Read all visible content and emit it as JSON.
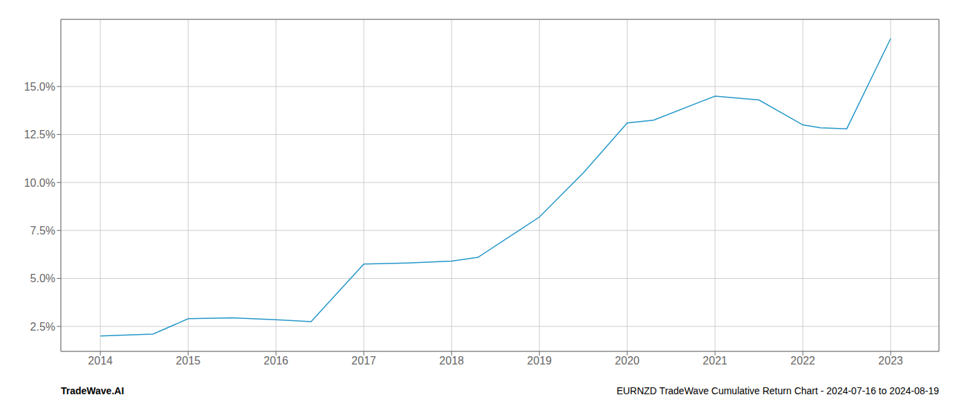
{
  "chart_data": {
    "type": "line",
    "x": [
      2014.0,
      2014.6,
      2015.0,
      2015.5,
      2016.0,
      2016.4,
      2017.0,
      2017.5,
      2018.0,
      2018.3,
      2019.0,
      2019.5,
      2020.0,
      2020.3,
      2021.0,
      2021.5,
      2022.0,
      2022.2,
      2022.5,
      2023.0
    ],
    "values": [
      2.0,
      2.1,
      2.9,
      2.95,
      2.85,
      2.75,
      5.75,
      5.8,
      5.9,
      6.1,
      8.2,
      10.5,
      13.1,
      13.25,
      14.5,
      14.3,
      13.0,
      12.85,
      12.8,
      17.5
    ],
    "color": "#2196c8",
    "xlim": [
      2013.55,
      2023.55
    ],
    "ylim": [
      1.2,
      18.5
    ],
    "xticks": [
      2014,
      2015,
      2016,
      2017,
      2018,
      2019,
      2020,
      2021,
      2022,
      2023
    ],
    "yticks": [
      {
        "value": 2.5,
        "label": "2.5%"
      },
      {
        "value": 5.0,
        "label": "5.0%"
      },
      {
        "value": 7.5,
        "label": "7.5%"
      },
      {
        "value": 10.0,
        "label": "10.0%"
      },
      {
        "value": 12.5,
        "label": "12.5%"
      },
      {
        "value": 15.0,
        "label": "15.0%"
      }
    ],
    "grid": true,
    "annotations": [
      "TradeWave.AI",
      "EURNZD TradeWave Cumulative Return Chart - 2024-07-16 to 2024-08-19"
    ]
  }
}
